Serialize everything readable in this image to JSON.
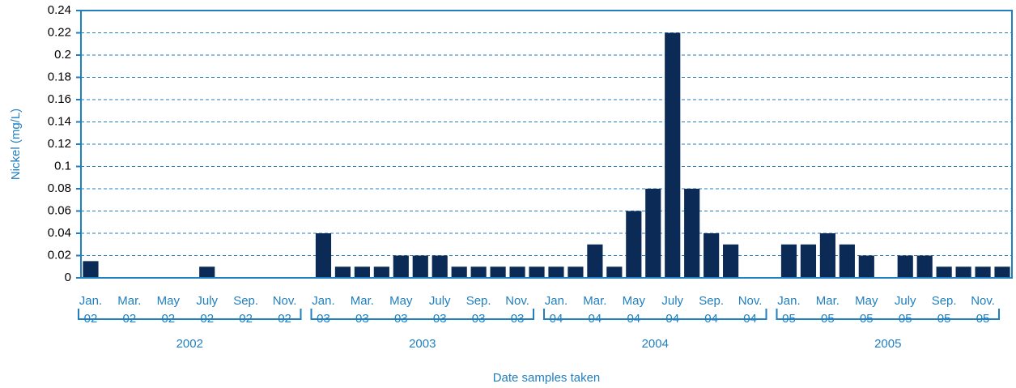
{
  "chart_data": {
    "type": "bar",
    "y_label": "Nickel (mg/L)",
    "x_label": "Date samples taken",
    "color": "#0c2a56",
    "axis_color": "#1f7fc0",
    "grid": true,
    "ylim": [
      0,
      0.24
    ],
    "yticks": [
      0,
      0.02,
      0.04,
      0.06,
      0.08,
      0.1,
      0.12,
      0.14,
      0.16,
      0.18,
      0.2,
      0.22,
      0.24
    ],
    "groups": [
      "2002",
      "2003",
      "2004",
      "2005"
    ],
    "categories": [
      "Jan. 02",
      null,
      "Mar. 02",
      null,
      "May 02",
      null,
      "July 02",
      null,
      "Sep. 02",
      null,
      "Nov. 02",
      null,
      "Jan. 03",
      null,
      "Mar. 03",
      null,
      "May 03",
      null,
      "July 03",
      null,
      "Sep. 03",
      null,
      "Nov. 03",
      null,
      "Jan. 04",
      null,
      "Mar. 04",
      null,
      "May 04",
      null,
      "July 04",
      null,
      "Sep. 04",
      null,
      "Nov. 04",
      null,
      "Jan. 05",
      null,
      "Mar. 05",
      null,
      "May 05",
      null,
      "July 05",
      null,
      "Sep. 05",
      null,
      "Nov. 05",
      null
    ],
    "values": [
      0.015,
      null,
      null,
      null,
      null,
      null,
      0.01,
      null,
      null,
      null,
      null,
      null,
      0.04,
      0.01,
      0.01,
      0.01,
      0.02,
      0.02,
      0.02,
      0.01,
      0.01,
      0.01,
      0.01,
      0.01,
      0.01,
      0.01,
      0.03,
      0.01,
      0.06,
      0.08,
      0.22,
      0.08,
      0.04,
      0.03,
      null,
      null,
      0.03,
      0.03,
      0.04,
      0.03,
      0.02,
      null,
      0.02,
      0.02,
      0.01,
      0.01,
      0.01,
      0.01
    ]
  }
}
